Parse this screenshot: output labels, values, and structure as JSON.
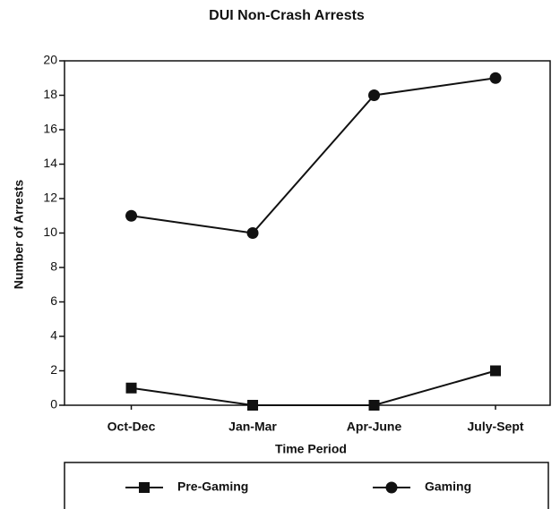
{
  "chart_data": {
    "type": "line",
    "title": "DUI Non-Crash Arrests",
    "x_label": "Time Period",
    "y_label": "Number of Arrests",
    "categories": [
      "Oct-Dec",
      "Jan-Mar",
      "Apr-June",
      "July-Sept"
    ],
    "series": [
      {
        "name": "Pre-Gaming",
        "color": "#111111",
        "marker": "square",
        "values": [
          1,
          0,
          0,
          2
        ]
      },
      {
        "name": "Gaming",
        "color": "#111111",
        "marker": "circle",
        "values": [
          11,
          10,
          18,
          19
        ]
      }
    ],
    "ylim": [
      0,
      20
    ],
    "yticks": [
      0,
      2,
      4,
      6,
      8,
      10,
      12,
      14,
      16,
      18,
      20
    ],
    "legend": "bottom"
  }
}
